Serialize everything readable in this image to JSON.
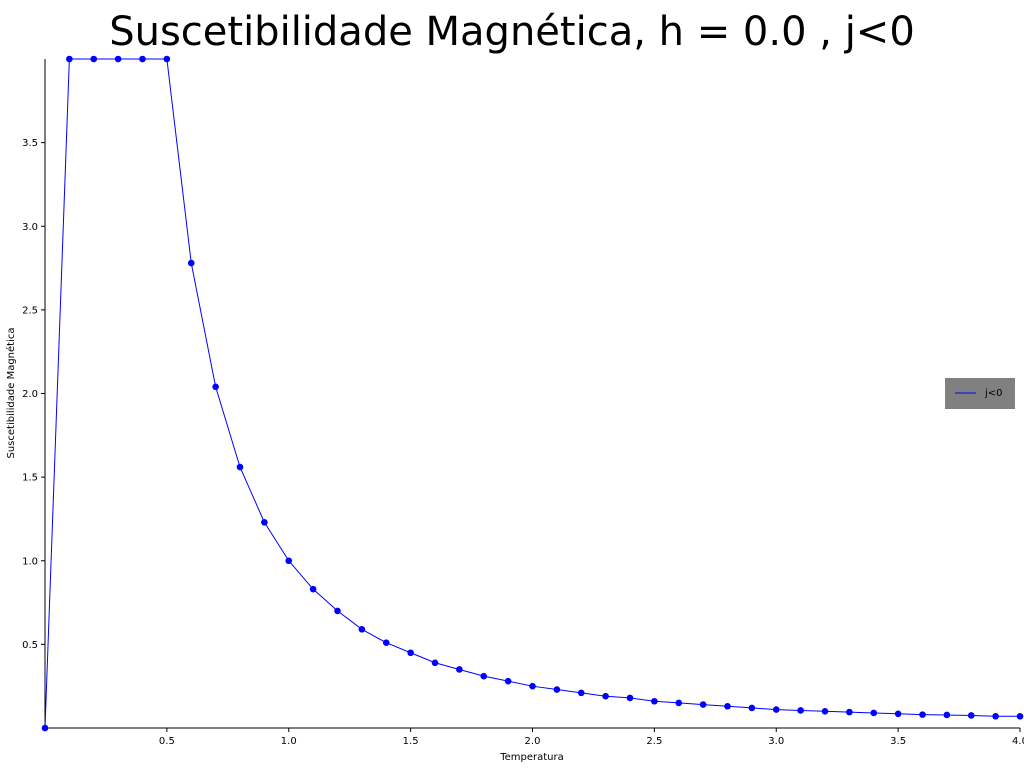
{
  "chart_data": {
    "type": "line",
    "title": "Suscetibilidade Magnética, h = 0.0 , j<0",
    "xlabel": "Temperatura",
    "ylabel": "Suscetibilidade Magnética",
    "xlim": [
      0.0,
      4.0
    ],
    "ylim": [
      0.0,
      4.0
    ],
    "xticks": [
      0.5,
      1.0,
      1.5,
      2.0,
      2.5,
      3.0,
      3.5,
      4.0
    ],
    "xtick_labels": [
      "0.5",
      "1.0",
      "1.5",
      "2.0",
      "2.5",
      "3.0",
      "3.5",
      "4.0"
    ],
    "yticks": [
      0.5,
      1.0,
      1.5,
      2.0,
      2.5,
      3.0,
      3.5
    ],
    "ytick_labels": [
      "0.5",
      "1.0",
      "1.5",
      "2.0",
      "2.5",
      "3.0",
      "3.5"
    ],
    "grid": false,
    "legend_position": "right",
    "series": [
      {
        "name": "j<0",
        "color": "#0000ff",
        "marker": "circle",
        "x": [
          0.0,
          0.1,
          0.2,
          0.3,
          0.4,
          0.5,
          0.6,
          0.7,
          0.8,
          0.9,
          1.0,
          1.1,
          1.2,
          1.3,
          1.4,
          1.5,
          1.6,
          1.7,
          1.8,
          1.9,
          2.0,
          2.1,
          2.2,
          2.3,
          2.4,
          2.5,
          2.6,
          2.7,
          2.8,
          2.9,
          3.0,
          3.1,
          3.2,
          3.3,
          3.4,
          3.5,
          3.6,
          3.7,
          3.8,
          3.9,
          4.0
        ],
        "y": [
          0.0,
          4.0,
          4.0,
          4.0,
          4.0,
          4.0,
          2.78,
          2.04,
          1.56,
          1.23,
          1.0,
          0.83,
          0.7,
          0.59,
          0.51,
          0.45,
          0.39,
          0.35,
          0.31,
          0.28,
          0.25,
          0.23,
          0.21,
          0.19,
          0.18,
          0.16,
          0.15,
          0.14,
          0.13,
          0.12,
          0.11,
          0.105,
          0.1,
          0.095,
          0.09,
          0.085,
          0.08,
          0.078,
          0.075,
          0.07,
          0.07
        ]
      }
    ]
  },
  "style": {
    "legend_background": "#808080"
  }
}
